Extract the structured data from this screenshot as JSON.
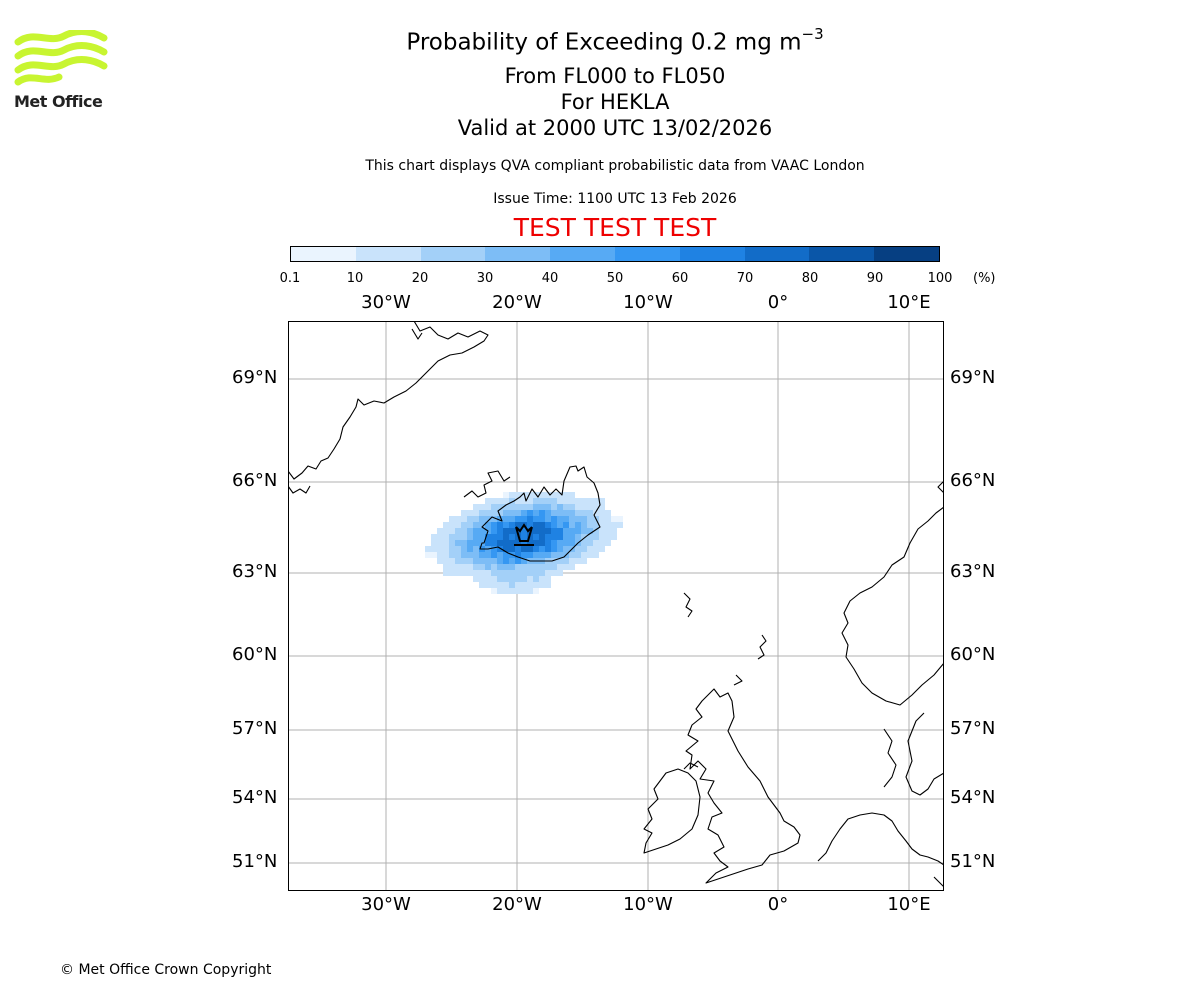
{
  "logo": {
    "name": "Met Office",
    "color": "#c8f531"
  },
  "title": {
    "main": "Probability of Exceeding 0.2 mg m",
    "superscript": "−3"
  },
  "subtitles": [
    "From FL000 to FL050",
    "For HEKLA",
    "Valid at 2000 UTC 13/02/2026"
  ],
  "notes": {
    "description": "This chart displays QVA compliant probabilistic data from VAAC London",
    "issue_time": "Issue Time: 1100 UTC 13 Feb 2026"
  },
  "test_banner": "TEST TEST TEST",
  "colorbar": {
    "labels": [
      "0.1",
      "10",
      "20",
      "30",
      "40",
      "50",
      "60",
      "70",
      "80",
      "90",
      "100"
    ],
    "unit": "(%)",
    "colors": [
      "#eaf4fe",
      "#c9e3fb",
      "#a3d0f8",
      "#7dbdf6",
      "#57aaf4",
      "#3597f2",
      "#1f82e3",
      "#126cc8",
      "#0a56a8",
      "#063f82",
      "#022a58"
    ]
  },
  "map": {
    "lon_labels": [
      "30°W",
      "20°W",
      "10°W",
      "0°",
      "10°E"
    ],
    "lat_labels": [
      "69°N",
      "66°N",
      "63°N",
      "60°N",
      "57°N",
      "54°N",
      "51°N"
    ],
    "volcano": "HEKLA",
    "volcano_symbol": "volcano-icon",
    "grid_color": "#b0b0b0"
  },
  "copyright": "© Met Office Crown Copyright"
}
